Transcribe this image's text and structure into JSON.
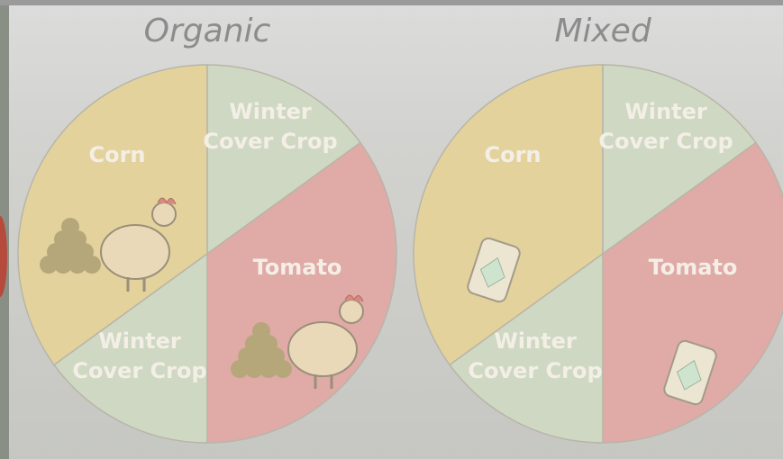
{
  "panels": [
    {
      "title": "Organic",
      "segments": [
        {
          "label": [
            "Corn"
          ]
        },
        {
          "label": [
            "Winter",
            "Cover Crop"
          ]
        },
        {
          "label": [
            "Tomato"
          ]
        },
        {
          "label": [
            "Winter",
            "Cover Crop"
          ]
        }
      ]
    },
    {
      "title": "Mixed",
      "segments": [
        {
          "label": [
            "Corn"
          ]
        },
        {
          "label": [
            "Winter",
            "Cover Crop"
          ]
        },
        {
          "label": [
            "Tomato"
          ]
        },
        {
          "label": [
            "Winter",
            "Cover Crop"
          ]
        }
      ]
    }
  ]
}
